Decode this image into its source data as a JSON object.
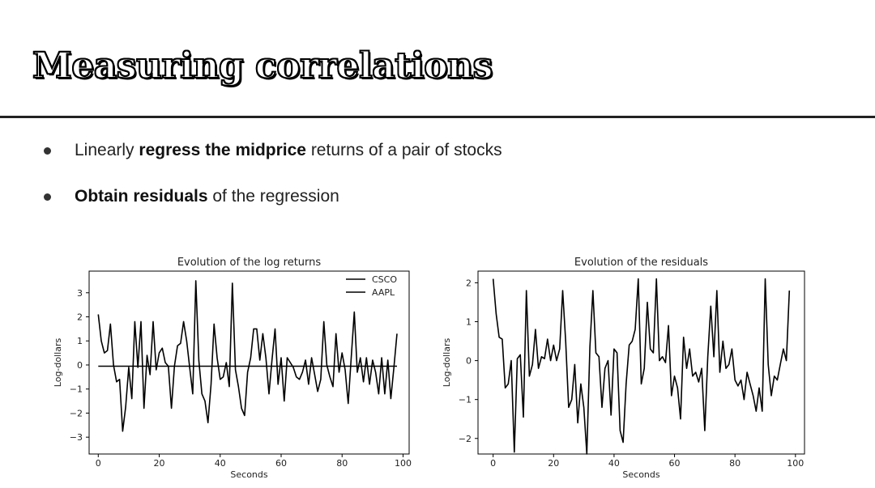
{
  "slide": {
    "title": "Measuring correlations"
  },
  "bullets": [
    {
      "pre": "Linearly ",
      "bold": "regress the midprice",
      "post": " returns of a pair of stocks"
    },
    {
      "pre": "",
      "bold": "Obtain residuals",
      "post": " of the regression"
    }
  ],
  "chart_data": [
    {
      "type": "line",
      "title": "Evolution of the log returns",
      "xlabel": "Seconds",
      "ylabel": "Log-dollars",
      "xlim": [
        -3,
        102
      ],
      "ylim": [
        -3.7,
        3.9
      ],
      "xticks": [
        0,
        20,
        40,
        60,
        80,
        100
      ],
      "yticks": [
        -3,
        -2,
        -1,
        0,
        1,
        2,
        3
      ],
      "grid": false,
      "legend": "top-right",
      "x": [
        0,
        1,
        2,
        3,
        4,
        5,
        6,
        7,
        8,
        9,
        10,
        11,
        12,
        13,
        14,
        15,
        16,
        17,
        18,
        19,
        20,
        21,
        22,
        23,
        24,
        25,
        26,
        27,
        28,
        29,
        30,
        31,
        32,
        33,
        34,
        35,
        36,
        37,
        38,
        39,
        40,
        41,
        42,
        43,
        44,
        45,
        46,
        47,
        48,
        49,
        50,
        51,
        52,
        53,
        54,
        55,
        56,
        57,
        58,
        59,
        60,
        61,
        62,
        63,
        64,
        65,
        66,
        67,
        68,
        69,
        70,
        71,
        72,
        73,
        74,
        75,
        76,
        77,
        78,
        79,
        80,
        81,
        82,
        83,
        84,
        85,
        86,
        87,
        88,
        89,
        90,
        91,
        92,
        93,
        94,
        95,
        96,
        97,
        98
      ],
      "series": [
        {
          "name": "CSCO",
          "color": "#000000",
          "values": [
            -0.05,
            -0.05,
            -0.05,
            -0.05,
            -0.05,
            -0.05,
            -0.05,
            -0.05,
            -0.05,
            -0.05,
            -0.05,
            -0.05,
            -0.05,
            -0.05,
            -0.05,
            -0.05,
            -0.05,
            -0.05,
            -0.05,
            -0.05,
            -0.05,
            -0.05,
            -0.05,
            -0.05,
            -0.05,
            -0.05,
            -0.05,
            -0.05,
            -0.05,
            -0.05,
            -0.05,
            -0.05,
            -0.05,
            -0.05,
            -0.05,
            -0.05,
            -0.05,
            -0.05,
            -0.05,
            -0.05,
            -0.05,
            -0.05,
            -0.05,
            -0.05,
            -0.05,
            -0.05,
            -0.05,
            -0.05,
            -0.05,
            -0.05,
            -0.05,
            -0.05,
            -0.05,
            -0.05,
            -0.05,
            -0.05,
            -0.05,
            -0.05,
            -0.05,
            -0.05,
            -0.05,
            -0.05,
            -0.05,
            -0.05,
            -0.05,
            -0.05,
            -0.05,
            -0.05,
            -0.05,
            -0.05,
            -0.05,
            -0.05,
            -0.05,
            -0.05,
            -0.05,
            -0.05,
            -0.05,
            -0.05,
            -0.05,
            -0.05,
            -0.05,
            -0.05,
            -0.05,
            -0.05,
            -0.05,
            -0.05,
            -0.05,
            -0.05,
            -0.05,
            -0.05,
            -0.05,
            -0.05,
            -0.05,
            -0.05,
            -0.05,
            -0.05,
            -0.05,
            -0.05,
            -0.05
          ]
        },
        {
          "name": "AAPL",
          "color": "#000000",
          "values": [
            2.1,
            1.0,
            0.5,
            0.6,
            1.7,
            0.0,
            -0.7,
            -0.6,
            -2.75,
            -1.75,
            -0.1,
            -1.4,
            1.8,
            -0.1,
            1.8,
            -1.8,
            0.4,
            -0.4,
            1.8,
            -0.2,
            0.5,
            0.7,
            0.1,
            -0.05,
            -1.8,
            -0.05,
            0.8,
            0.9,
            1.8,
            1.0,
            -0.1,
            -1.2,
            3.5,
            0.2,
            -1.2,
            -1.5,
            -2.4,
            -0.8,
            1.7,
            0.3,
            -0.6,
            -0.5,
            0.1,
            -0.9,
            3.4,
            -0.2,
            -0.9,
            -1.8,
            -2.1,
            -0.3,
            0.3,
            1.5,
            1.5,
            0.2,
            1.3,
            0.3,
            -1.2,
            0.2,
            1.5,
            -0.8,
            0.3,
            -1.5,
            0.3,
            0.1,
            -0.1,
            -0.5,
            -0.6,
            -0.3,
            0.2,
            -0.8,
            0.3,
            -0.4,
            -1.1,
            -0.6,
            1.8,
            0.0,
            -0.5,
            -0.9,
            1.3,
            -0.3,
            0.5,
            -0.2,
            -1.6,
            0.3,
            2.2,
            -0.3,
            0.3,
            -0.7,
            0.3,
            -0.8,
            0.2,
            -0.3,
            -1.2,
            0.3,
            -1.2,
            0.2,
            -1.4,
            -0.1,
            1.3
          ]
        }
      ]
    },
    {
      "type": "line",
      "title": "Evolution of the residuals",
      "xlabel": "Seconds",
      "ylabel": "Log-dollars",
      "xlim": [
        -5,
        103
      ],
      "ylim": [
        -2.4,
        2.3
      ],
      "xticks": [
        0,
        20,
        40,
        60,
        80,
        100
      ],
      "yticks": [
        -2,
        -1,
        0,
        1,
        2
      ],
      "grid": false,
      "x": [
        0,
        1,
        2,
        3,
        4,
        5,
        6,
        7,
        8,
        9,
        10,
        11,
        12,
        13,
        14,
        15,
        16,
        17,
        18,
        19,
        20,
        21,
        22,
        23,
        24,
        25,
        26,
        27,
        28,
        29,
        30,
        31,
        32,
        33,
        34,
        35,
        36,
        37,
        38,
        39,
        40,
        41,
        42,
        43,
        44,
        45,
        46,
        47,
        48,
        49,
        50,
        51,
        52,
        53,
        54,
        55,
        56,
        57,
        58,
        59,
        60,
        61,
        62,
        63,
        64,
        65,
        66,
        67,
        68,
        69,
        70,
        71,
        72,
        73,
        74,
        75,
        76,
        77,
        78,
        79,
        80,
        81,
        82,
        83,
        84,
        85,
        86,
        87,
        88,
        89,
        90,
        91,
        92,
        93,
        94,
        95,
        96,
        97,
        98
      ],
      "series": [
        {
          "color": "#000000",
          "values": [
            2.1,
            1.2,
            0.6,
            0.55,
            -0.7,
            -0.6,
            0.0,
            -2.35,
            0.05,
            0.15,
            -1.45,
            1.8,
            -0.4,
            -0.1,
            0.8,
            -0.2,
            0.1,
            0.05,
            0.55,
            0.0,
            0.4,
            0.0,
            0.3,
            1.8,
            0.5,
            -1.2,
            -1.0,
            -0.1,
            -1.6,
            -0.6,
            -1.2,
            -2.4,
            0.35,
            1.8,
            0.2,
            0.1,
            -1.2,
            -0.2,
            0.0,
            -1.4,
            0.3,
            0.2,
            -1.8,
            -2.1,
            -0.6,
            0.4,
            0.5,
            0.8,
            2.1,
            -0.6,
            -0.2,
            1.5,
            0.3,
            0.2,
            2.1,
            0.0,
            0.1,
            -0.05,
            0.9,
            -0.9,
            -0.4,
            -0.7,
            -1.5,
            0.6,
            -0.2,
            0.3,
            -0.4,
            -0.3,
            -0.55,
            -0.2,
            -1.8,
            0.1,
            1.4,
            0.1,
            1.8,
            -0.3,
            0.5,
            -0.2,
            -0.1,
            0.3,
            -0.5,
            -0.65,
            -0.5,
            -1.0,
            -0.3,
            -0.6,
            -0.9,
            -1.3,
            -0.7,
            -1.3,
            2.1,
            -0.1,
            -0.9,
            -0.4,
            -0.5,
            -0.1,
            0.3,
            0.0,
            1.8
          ]
        }
      ]
    }
  ]
}
